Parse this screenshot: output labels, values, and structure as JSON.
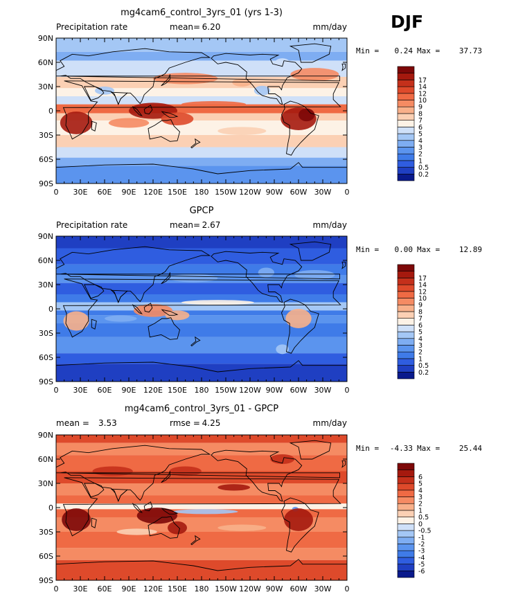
{
  "season": "DJF",
  "lon_ticks": [
    "0",
    "30E",
    "60E",
    "90E",
    "120E",
    "150E",
    "180",
    "150W",
    "120W",
    "90W",
    "60W",
    "30W",
    "0"
  ],
  "lat_ticks": [
    "90N",
    "60N",
    "30N",
    "0",
    "30S",
    "60S",
    "90S"
  ],
  "precip_colors": [
    "#0a1a8c",
    "#1f3fc2",
    "#2f5de0",
    "#3f7be8",
    "#5b94ee",
    "#7eadf2",
    "#a4c7f5",
    "#cfe0f8",
    "#fdf2e6",
    "#fbd0b4",
    "#f8b08a",
    "#f58b63",
    "#ef6a44",
    "#de4a2b",
    "#c4301b",
    "#a5190e",
    "#7d0808"
  ],
  "precip_levels": [
    "0.2",
    "0.5",
    "1",
    "2",
    "3",
    "4",
    "5",
    "6",
    "7",
    "8",
    "9",
    "10",
    "12",
    "14",
    "17"
  ],
  "diff_colors": [
    "#0a1a8c",
    "#1f3fc2",
    "#2f5de0",
    "#3f7be8",
    "#5b94ee",
    "#7eadf2",
    "#a4c7f5",
    "#cfe0f8",
    "#fdf2e6",
    "#fbd0b4",
    "#f8b08a",
    "#f58b63",
    "#ef6a44",
    "#de4a2b",
    "#c4301b",
    "#a5190e",
    "#7d0808"
  ],
  "diff_levels": [
    "-6",
    "-5",
    "-4",
    "-3",
    "-2",
    "-1",
    "-0.5",
    "0",
    "0.5",
    "1",
    "2",
    "3",
    "4",
    "5",
    "6"
  ],
  "chart_data": [
    {
      "type": "heatmap",
      "title": "mg4cam6_control_3yrs_01 (yrs 1-3)",
      "left_label": "Precipitation rate",
      "stat_label": "mean=",
      "stat_value": "6.20",
      "units": "mm/day",
      "min_label": "Min =",
      "min_value": "0.24",
      "max_label": "Max =",
      "max_value": "37.73",
      "x_range": [
        0,
        360
      ],
      "y_range": [
        -90,
        90
      ]
    },
    {
      "type": "heatmap",
      "title": "GPCP",
      "left_label": "Precipitation rate",
      "stat_label": "mean=",
      "stat_value": "2.67",
      "units": "mm/day",
      "min_label": "Min =",
      "min_value": "0.00",
      "max_label": "Max =",
      "max_value": "12.89",
      "x_range": [
        0,
        360
      ],
      "y_range": [
        -90,
        90
      ]
    },
    {
      "type": "heatmap",
      "title": "mg4cam6_control_3yrs_01 - GPCP",
      "left_label": "mean =",
      "left_value": "3.53",
      "stat_label": "rmse =",
      "stat_value": "4.25",
      "units": "mm/day",
      "min_label": "Min =",
      "min_value": "-4.33",
      "max_label": "Max =",
      "max_value": "25.44",
      "x_range": [
        0,
        360
      ],
      "y_range": [
        -90,
        90
      ]
    }
  ]
}
